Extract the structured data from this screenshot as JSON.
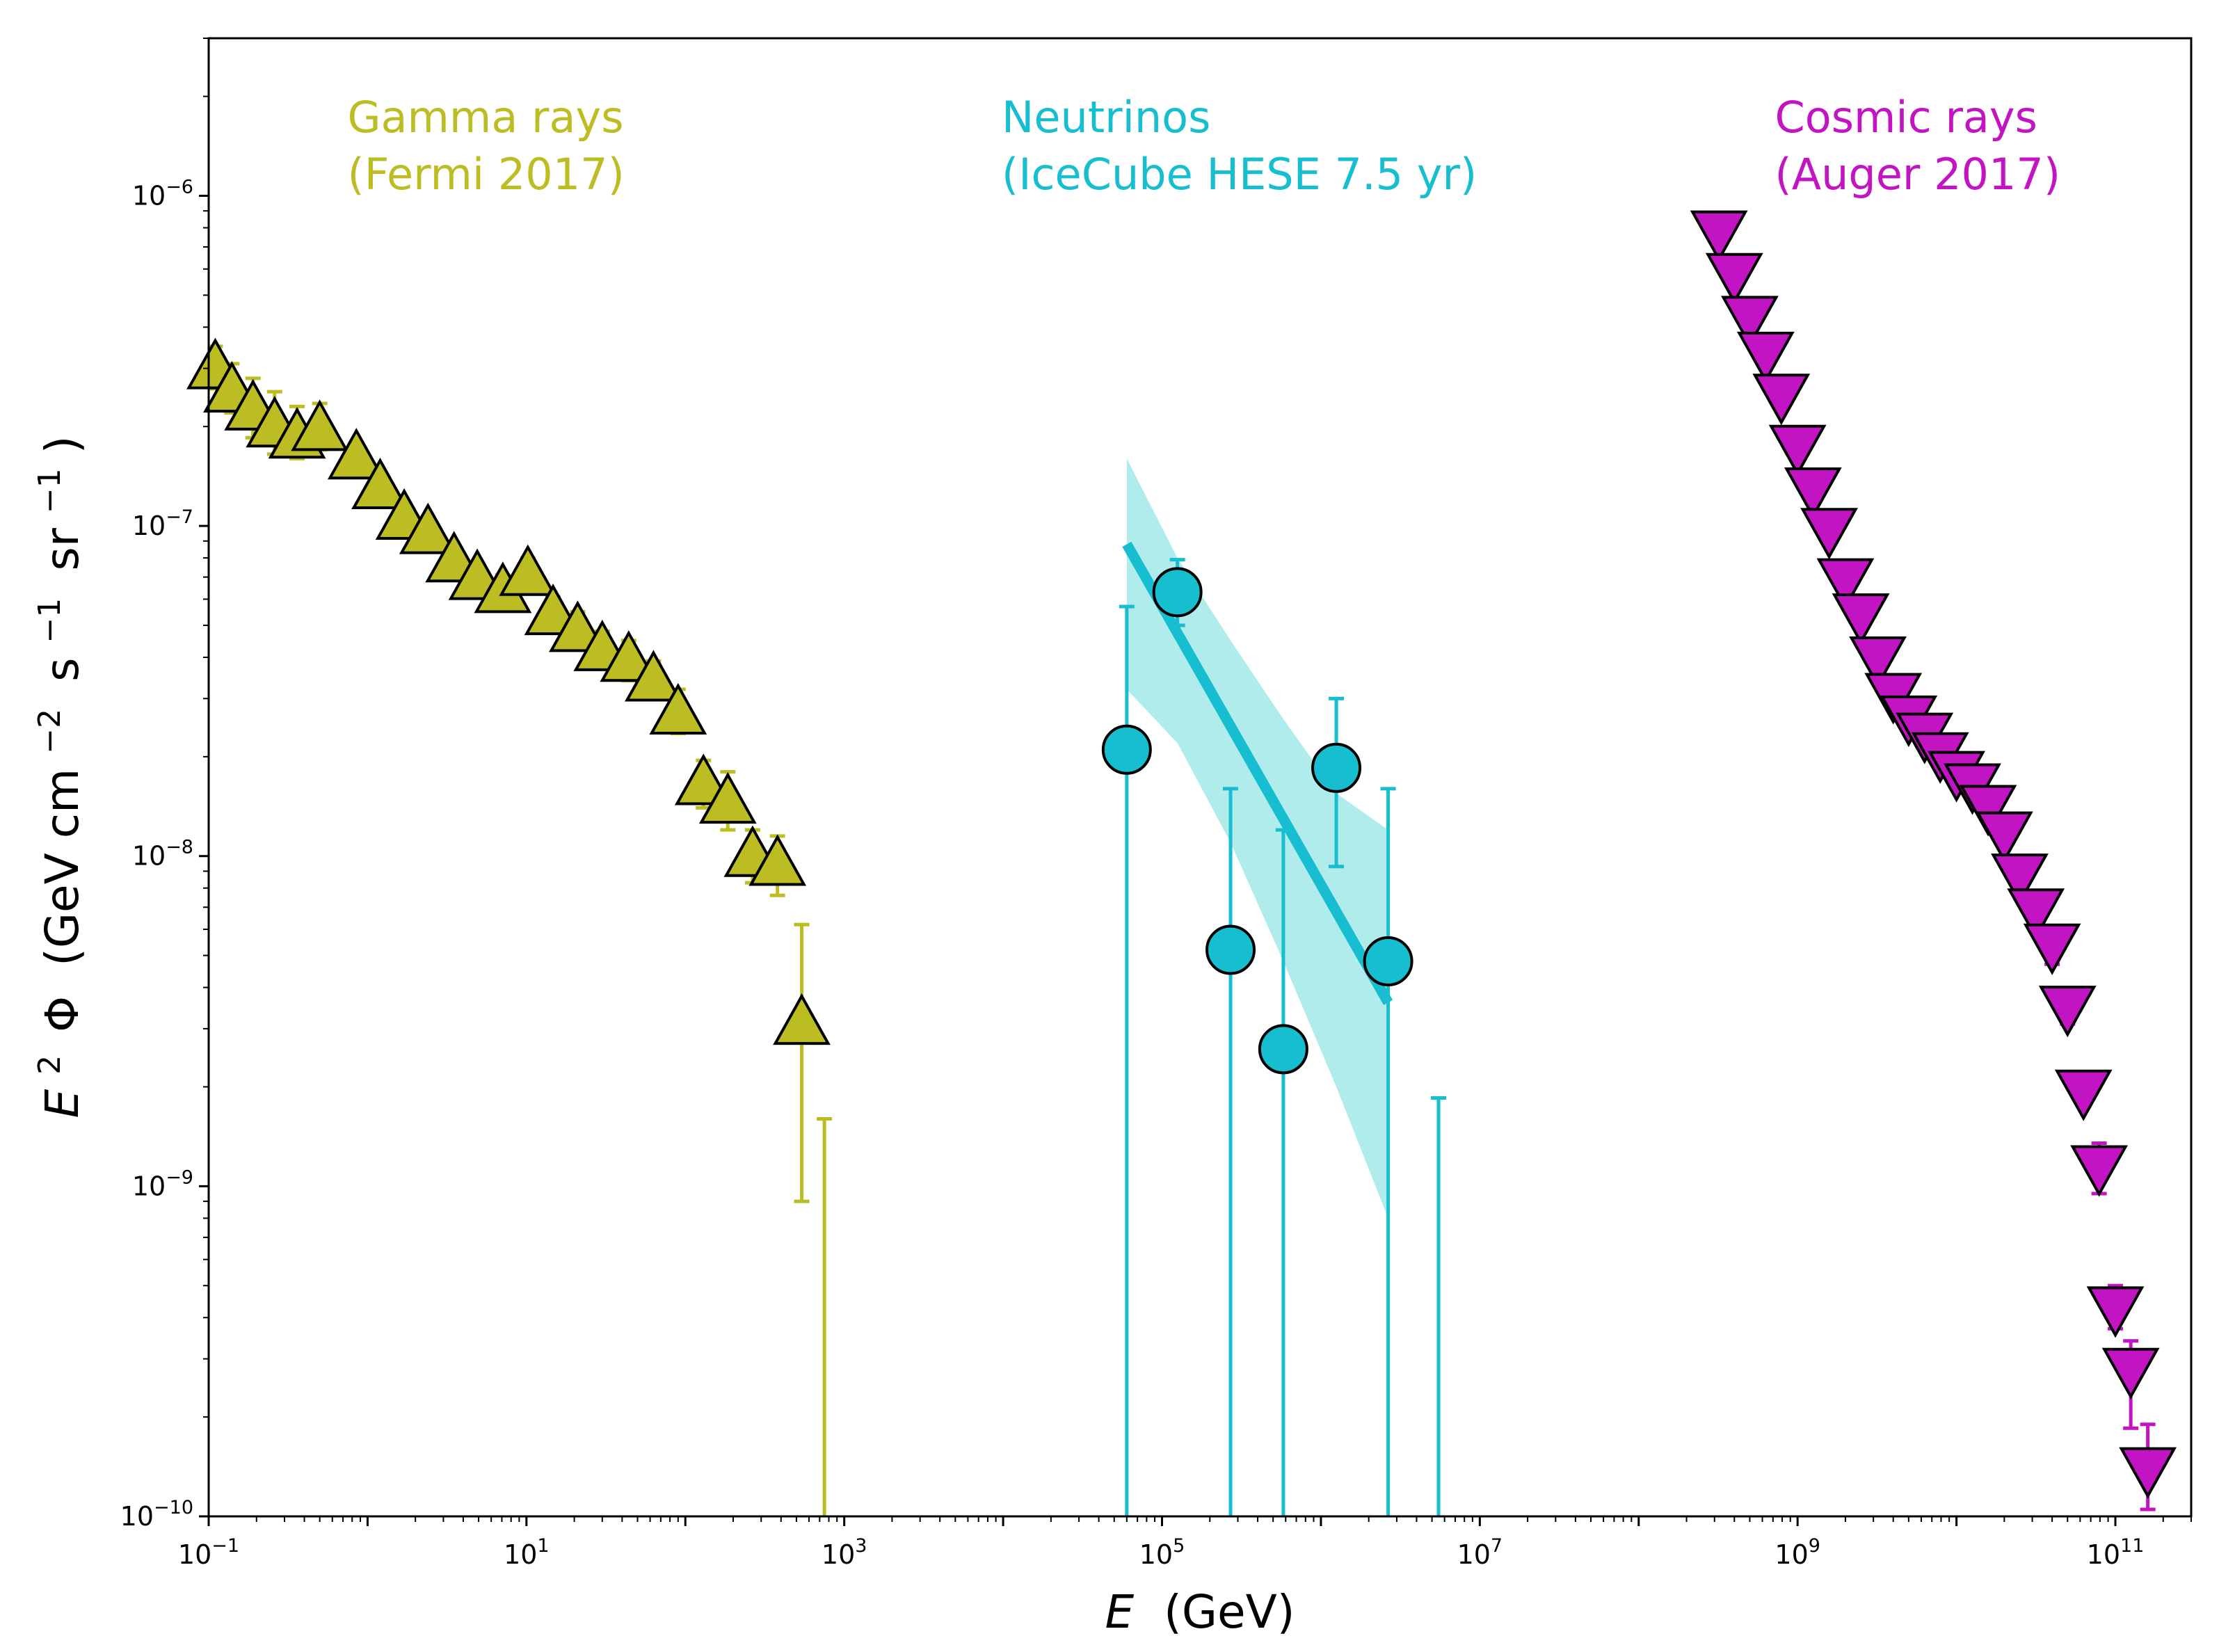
{
  "chart_data": {
    "type": "scatter",
    "title": "",
    "xlabel": "E (GeV)",
    "xlabel_italic": "E",
    "xlabel_rest": "(GeV)",
    "ylabel": "E^2 Φ (GeV cm^−2 s^−1 sr^−1)",
    "ylabel_parts": {
      "e": "E",
      "sup2": "2",
      "phi": "Φ",
      "open": "(GeV cm",
      "supA": "−2",
      "s": "s",
      "supB": "−1",
      "sr": "sr",
      "supC": "−1",
      "close": ")"
    },
    "xscale": "log",
    "yscale": "log",
    "xlim": [
      0.1,
      300000000000
    ],
    "ylim": [
      1e-10,
      3e-06
    ],
    "grid": false,
    "x_ticks": [
      {
        "value": 0.1,
        "base": "10",
        "exp": "−1"
      },
      {
        "value": 10,
        "base": "10",
        "exp": "1"
      },
      {
        "value": 1000,
        "base": "10",
        "exp": "3"
      },
      {
        "value": 100000,
        "base": "10",
        "exp": "5"
      },
      {
        "value": 10000000,
        "base": "10",
        "exp": "7"
      },
      {
        "value": 1000000000,
        "base": "10",
        "exp": "9"
      },
      {
        "value": 100000000000,
        "base": "10",
        "exp": "11"
      }
    ],
    "y_ticks": [
      {
        "value": 1e-10,
        "base": "10",
        "exp": "−10"
      },
      {
        "value": 1e-09,
        "base": "10",
        "exp": "−9"
      },
      {
        "value": 1e-08,
        "base": "10",
        "exp": "−8"
      },
      {
        "value": 1e-07,
        "base": "10",
        "exp": "−7"
      },
      {
        "value": 1e-06,
        "base": "10",
        "exp": "−6"
      }
    ],
    "series": [
      {
        "name": "Gamma rays",
        "label_lines": [
          "Gamma rays",
          "(Fermi 2017)"
        ],
        "color": "#bcbd22",
        "marker": "triangle-up",
        "label_x": 0.07,
        "label_y": 0.6,
        "points": [
          {
            "x": 0.11,
            "y": 3e-07,
            "lo": 2.6e-07,
            "hi": 3.5e-07
          },
          {
            "x": 0.14,
            "y": 2.55e-07,
            "lo": 2.2e-07,
            "hi": 3.1e-07
          },
          {
            "x": 0.19,
            "y": 2.25e-07,
            "lo": 1.85e-07,
            "hi": 2.8e-07
          },
          {
            "x": 0.26,
            "y": 2e-07,
            "lo": 1.65e-07,
            "hi": 2.55e-07
          },
          {
            "x": 0.36,
            "y": 1.85e-07,
            "lo": 1.6e-07,
            "hi": 2.3e-07
          },
          {
            "x": 0.5,
            "y": 1.95e-07,
            "lo": 1.7e-07,
            "hi": 2.35e-07
          },
          {
            "x": 0.85,
            "y": 1.6e-07,
            "lo": 1.45e-07,
            "hi": 1.78e-07
          },
          {
            "x": 1.2,
            "y": 1.3e-07,
            "lo": 1.2e-07,
            "hi": 1.45e-07
          },
          {
            "x": 1.7,
            "y": 1.05e-07,
            "lo": 9.6e-08,
            "hi": 1.15e-07
          },
          {
            "x": 2.4,
            "y": 9.5e-08,
            "lo": 8.6e-08,
            "hi": 1.05e-07
          },
          {
            "x": 3.5,
            "y": 7.8e-08,
            "lo": 7e-08,
            "hi": 8.7e-08
          },
          {
            "x": 4.9,
            "y": 6.9e-08,
            "lo": 6.2e-08,
            "hi": 7.7e-08
          },
          {
            "x": 7.1,
            "y": 6.3e-08,
            "lo": 5.6e-08,
            "hi": 7.1e-08
          },
          {
            "x": 10.2,
            "y": 7.1e-08,
            "lo": 6.3e-08,
            "hi": 8e-08
          },
          {
            "x": 14.7,
            "y": 5.4e-08,
            "lo": 4.8e-08,
            "hi": 6.1e-08
          },
          {
            "x": 21.0,
            "y": 4.8e-08,
            "lo": 4.3e-08,
            "hi": 5.5e-08
          },
          {
            "x": 30.0,
            "y": 4.2e-08,
            "lo": 3.7e-08,
            "hi": 4.8e-08
          },
          {
            "x": 44.0,
            "y": 3.9e-08,
            "lo": 3.4e-08,
            "hi": 4.5e-08
          },
          {
            "x": 63.0,
            "y": 3.4e-08,
            "lo": 3e-08,
            "hi": 3.9e-08
          },
          {
            "x": 90.0,
            "y": 2.7e-08,
            "lo": 2.35e-08,
            "hi": 3.2e-08
          },
          {
            "x": 130.0,
            "y": 1.65e-08,
            "lo": 1.4e-08,
            "hi": 1.95e-08
          },
          {
            "x": 185.0,
            "y": 1.45e-08,
            "lo": 1.2e-08,
            "hi": 1.8e-08
          },
          {
            "x": 265.0,
            "y": 1e-08,
            "lo": 8.3e-09,
            "hi": 1.2e-08
          },
          {
            "x": 380.0,
            "y": 9.4e-09,
            "lo": 7.6e-09,
            "hi": 1.15e-08
          },
          {
            "x": 540.0,
            "y": 3.1e-09,
            "lo": 9e-10,
            "hi": 6.2e-09
          }
        ],
        "upper_limits": [
          {
            "x": 750.0,
            "hi": 1.6e-09
          }
        ]
      },
      {
        "name": "Neutrinos",
        "label_lines": [
          "Neutrinos",
          "(IceCube HESE 7.5 yr)"
        ],
        "color": "#17becf",
        "band_color": "#b0ecec",
        "marker": "circle",
        "label_x": 0.4,
        "label_y": 0.6,
        "points": [
          {
            "x": 60000.0,
            "y": 2.1e-08,
            "lo": 1e-10,
            "hi": 5.7e-08
          },
          {
            "x": 125000.0,
            "y": 6.3e-08,
            "lo": 5e-08,
            "hi": 7.9e-08
          },
          {
            "x": 270000.0,
            "y": 5.2e-09,
            "lo": 1e-10,
            "hi": 1.6e-08
          },
          {
            "x": 580000.0,
            "y": 2.6e-09,
            "lo": 1e-10,
            "hi": 1.2e-08
          },
          {
            "x": 1250000.0,
            "y": 1.85e-08,
            "lo": 9.3e-09,
            "hi": 3e-08
          },
          {
            "x": 2650000.0,
            "y": 4.8e-09,
            "lo": 1e-10,
            "hi": 1.6e-08
          }
        ],
        "upper_limits": [
          {
            "x": 5500000.0,
            "hi": 1.85e-09
          }
        ],
        "fit": {
          "x": [
            60000.0,
            2650000.0
          ],
          "y": [
            8.8e-08,
            3.6e-09
          ],
          "band_x": [
            60000.0,
            125000.0,
            270000.0,
            580000.0,
            1250000.0,
            2650000.0
          ],
          "band_hi": [
            1.6e-07,
            8e-08,
            4.5e-08,
            2.6e-08,
            1.55e-08,
            1.2e-08
          ],
          "band_lo": [
            3.2e-08,
            2.2e-08,
            1.1e-08,
            4.8e-09,
            2e-09,
            8e-10
          ]
        }
      },
      {
        "name": "Cosmic rays",
        "label_lines": [
          "Cosmic rays",
          "(Auger 2017)"
        ],
        "color": "#c214c2",
        "marker": "triangle-down",
        "label_x": 0.79,
        "label_y": 0.6,
        "points": [
          {
            "x": 320000000.0,
            "y": 7.8e-07
          },
          {
            "x": 400000000.0,
            "y": 5.8e-07
          },
          {
            "x": 500000000.0,
            "y": 4.3e-07
          },
          {
            "x": 630000000.0,
            "y": 3.35e-07
          },
          {
            "x": 790000000.0,
            "y": 2.5e-07
          },
          {
            "x": 1000000000.0,
            "y": 1.75e-07
          },
          {
            "x": 1250000000.0,
            "y": 1.3e-07
          },
          {
            "x": 1580000000.0,
            "y": 9.8e-08
          },
          {
            "x": 2000000000.0,
            "y": 6.9e-08
          },
          {
            "x": 2500000000.0,
            "y": 5.4e-08
          },
          {
            "x": 3200000000.0,
            "y": 4e-08
          },
          {
            "x": 4000000000.0,
            "y": 3.1e-08
          },
          {
            "x": 5000000000.0,
            "y": 2.65e-08
          },
          {
            "x": 6300000000.0,
            "y": 2.35e-08
          },
          {
            "x": 7900000000.0,
            "y": 2.05e-08
          },
          {
            "x": 10000000000.0,
            "y": 1.8e-08
          },
          {
            "x": 12600000000.0,
            "y": 1.65e-08
          },
          {
            "x": 15800000000.0,
            "y": 1.42e-08
          },
          {
            "x": 20000000000.0,
            "y": 1.18e-08
          },
          {
            "x": 25000000000.0,
            "y": 8.8e-09
          },
          {
            "x": 31600000000.0,
            "y": 6.9e-09
          },
          {
            "x": 40000000000.0,
            "y": 5.4e-09,
            "lo": 4.7e-09,
            "hi": 6.1e-09
          },
          {
            "x": 50000000000.0,
            "y": 3.5e-09,
            "lo": 3.1e-09,
            "hi": 3.9e-09
          },
          {
            "x": 63000000000.0,
            "y": 1.95e-09,
            "lo": 1.75e-09,
            "hi": 2.15e-09
          },
          {
            "x": 79000000000.0,
            "y": 1.15e-09,
            "lo": 9.5e-10,
            "hi": 1.35e-09
          },
          {
            "x": 100000000000.0,
            "y": 4.3e-10,
            "lo": 3.7e-10,
            "hi": 5e-10
          },
          {
            "x": 125000000000.0,
            "y": 2.8e-10,
            "lo": 1.85e-10,
            "hi": 3.4e-10
          },
          {
            "x": 160000000000.0,
            "y": 1.4e-10,
            "lo": 1.05e-10,
            "hi": 1.9e-10
          }
        ]
      }
    ]
  }
}
